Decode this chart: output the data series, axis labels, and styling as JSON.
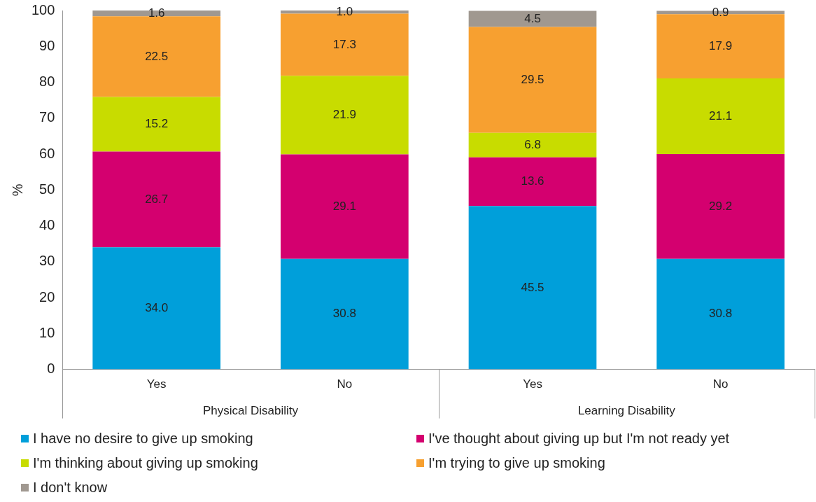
{
  "chart_data": {
    "type": "bar",
    "stacked": true,
    "ylabel": "%",
    "categories": [
      "Yes",
      "No",
      "Yes",
      "No"
    ],
    "annotations": [
      "Physical Disability",
      "Learning Disability"
    ],
    "ylim": [
      0,
      100
    ],
    "yticks": [
      0,
      10,
      20,
      30,
      40,
      50,
      60,
      70,
      80,
      90,
      100
    ],
    "grid": false,
    "legend": "bottom",
    "series": [
      {
        "name": "I have no desire to give up smoking",
        "color": "#009fda",
        "values": [
          34.0,
          30.8,
          45.5,
          30.8
        ],
        "value_labels": [
          "34.0",
          "30.8",
          "45.5",
          "30.8"
        ]
      },
      {
        "name": "I've thought about giving up but I'm not ready yet",
        "color": "#d4006f",
        "values": [
          26.7,
          29.1,
          13.6,
          29.2
        ],
        "value_labels": [
          "26.7",
          "29.1",
          "13.6",
          "29.2"
        ]
      },
      {
        "name": "I'm thinking about giving up smoking",
        "color": "#c8dc00",
        "values": [
          15.2,
          21.9,
          6.8,
          21.1
        ],
        "value_labels": [
          "15.2",
          "21.9",
          "6.8",
          "21.1"
        ]
      },
      {
        "name": "I'm trying to give up smoking",
        "color": "#f7a030",
        "values": [
          22.5,
          17.3,
          29.5,
          17.9
        ],
        "value_labels": [
          "22.5",
          "17.3",
          "29.5",
          "17.9"
        ]
      },
      {
        "name": "I don't know",
        "color": "#a09890",
        "values": [
          1.6,
          1.0,
          4.5,
          0.9
        ],
        "value_labels": [
          "1.6",
          "1.0",
          "4.5",
          "0.9"
        ]
      }
    ]
  }
}
